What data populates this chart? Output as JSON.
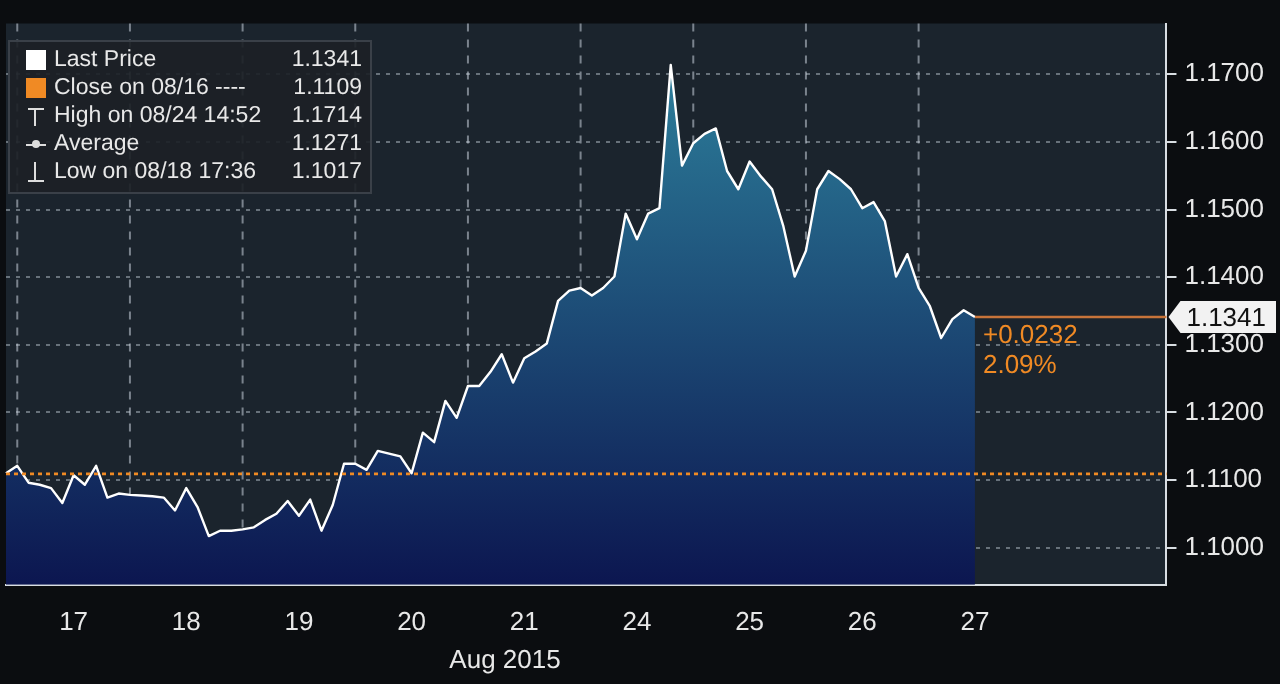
{
  "chart_data": {
    "type": "area",
    "xlabel": "Aug 2015",
    "categories": [
      null,
      null,
      null,
      null,
      null,
      null,
      "17",
      null,
      null,
      null,
      null,
      null,
      null,
      null,
      null,
      null,
      "18",
      null,
      null,
      null,
      null,
      null,
      null,
      null,
      null,
      null,
      "19",
      null,
      null,
      null,
      null,
      null,
      null,
      null,
      null,
      null,
      "20",
      null,
      null,
      null,
      null,
      null,
      null,
      null,
      null,
      null,
      "21",
      null,
      null,
      null,
      null,
      null,
      null,
      null,
      null,
      null,
      "24",
      null,
      null,
      null,
      null,
      null,
      null,
      null,
      null,
      null,
      "25",
      null,
      null,
      null,
      null,
      null,
      null,
      null,
      null,
      null,
      "26",
      null,
      null,
      null,
      null,
      null,
      null,
      null,
      null,
      null,
      "27",
      null,
      null,
      null,
      null,
      null,
      null,
      null,
      null,
      null,
      null,
      null,
      null,
      null,
      null,
      null,
      null,
      null
    ],
    "series": [
      {
        "name": "Last Price",
        "color": "#ffffff",
        "values": [
          1.111,
          1.1121,
          1.1096,
          1.1093,
          1.1088,
          1.1066,
          1.1107,
          1.1093,
          1.1121,
          1.1074,
          1.108,
          1.1078,
          1.1077,
          1.1076,
          1.1074,
          1.1055,
          1.1088,
          1.106,
          1.1017,
          1.1025,
          1.1025,
          1.1027,
          1.103,
          1.1041,
          1.105,
          1.1069,
          1.1047,
          1.1071,
          1.1025,
          1.1063,
          1.1124,
          1.1124,
          1.1115,
          1.1143,
          1.1139,
          1.1135,
          1.111,
          1.117,
          1.1156,
          1.1217,
          1.1192,
          1.1239,
          1.1239,
          1.126,
          1.1286,
          1.1244,
          1.128,
          1.129,
          1.1302,
          1.1365,
          1.138,
          1.1384,
          1.1373,
          1.1384,
          1.1401,
          1.1494,
          1.1456,
          1.1494,
          1.1502,
          1.1714,
          1.1565,
          1.1598,
          1.1612,
          1.162,
          1.1557,
          1.153,
          1.1571,
          1.1549,
          1.153,
          1.1475,
          1.1401,
          1.1439,
          1.153,
          1.1557,
          1.1545,
          1.153,
          1.1502,
          1.1511,
          1.1483,
          1.1401,
          1.1434,
          1.1384,
          1.1357,
          1.131,
          1.1338,
          1.1351,
          1.1341,
          null,
          null,
          null,
          null,
          null,
          null,
          null,
          null,
          null,
          null,
          null,
          null,
          null,
          null,
          null,
          null,
          null
        ]
      }
    ],
    "ylim": [
      1.0945,
      1.1775
    ],
    "yticks": [
      {
        "value": 1.1,
        "label": "1.1000"
      },
      {
        "value": 1.11,
        "label": "1.1100"
      },
      {
        "value": 1.12,
        "label": "1.1200"
      },
      {
        "value": 1.13,
        "label": "1.1300"
      },
      {
        "value": 1.14,
        "label": "1.1400"
      },
      {
        "value": 1.15,
        "label": "1.1500"
      },
      {
        "value": 1.16,
        "label": "1.1600"
      },
      {
        "value": 1.17,
        "label": "1.1700"
      }
    ],
    "grid": true,
    "legend": "top left",
    "ref_lines": [
      {
        "axis": "y",
        "value": 1.1109,
        "color": "#f08a24",
        "line_style": "dotted"
      },
      {
        "axis": "y",
        "value": 1.1341,
        "label": "1.1341",
        "color": "#c8743a",
        "line_style": "solid"
      }
    ],
    "annotations": [
      "1.1341",
      "Close on 08/16 ---- 1.1109",
      "High on 08/24 14:52 1.1714",
      "Average 1.1271",
      "Low on 08/18 17:36 1.1017",
      {
        "text": "+0.0232",
        "x": "27",
        "y": 1.1341
      },
      "2.09%"
    ]
  }
}
